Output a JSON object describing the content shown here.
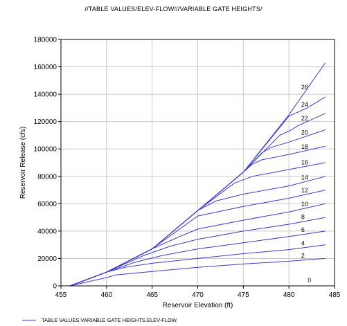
{
  "chart_data": {
    "type": "line",
    "title": "//TABLE VALUES/ELEV-FLOW///VARIABLE GATE HEIGHTS/",
    "xlabel": "Reservoir Elevation (ft)",
    "ylabel": "Reservoir Release (cfs)",
    "xlim": [
      455,
      485
    ],
    "ylim": [
      0,
      180000
    ],
    "xticks": [
      455,
      460,
      465,
      470,
      475,
      480,
      485
    ],
    "yticks": [
      0,
      20000,
      40000,
      60000,
      80000,
      100000,
      120000,
      140000,
      160000,
      180000
    ],
    "grid": true,
    "legend": {
      "position": "bottom-left",
      "label": "TABLE VALUES.VARIABLE GATE HEIGHTS.ELEV-FLOW."
    },
    "line_color": "#3a3acc",
    "series": [
      {
        "label": "0",
        "x": [
          456,
          485
        ],
        "y": [
          0,
          0
        ]
      },
      {
        "label": "2",
        "x": [
          456,
          460,
          461,
          465,
          470,
          475,
          480,
          484
        ],
        "y": [
          0,
          6000,
          8000,
          10500,
          13500,
          16000,
          18000,
          20000
        ]
      },
      {
        "label": "4",
        "x": [
          456,
          460,
          462,
          465,
          470,
          475,
          480,
          484
        ],
        "y": [
          0,
          10000,
          13500,
          16500,
          20000,
          23500,
          26500,
          30000
        ]
      },
      {
        "label": "6",
        "x": [
          456,
          460,
          463,
          466,
          470,
          475,
          480,
          484
        ],
        "y": [
          0,
          10000,
          17000,
          22000,
          27000,
          31500,
          36000,
          40000
        ]
      },
      {
        "label": "8",
        "x": [
          456,
          460,
          464,
          467,
          470,
          475,
          480,
          484
        ],
        "y": [
          0,
          10000,
          22000,
          29000,
          34000,
          40000,
          45000,
          50000
        ]
      },
      {
        "label": "10",
        "x": [
          456,
          460,
          465,
          468,
          470,
          475,
          480,
          484
        ],
        "y": [
          0,
          10000,
          27000,
          36000,
          41500,
          48000,
          54000,
          60000
        ]
      },
      {
        "label": "12",
        "x": [
          456,
          460,
          465,
          470,
          475,
          480,
          484
        ],
        "y": [
          0,
          10000,
          27000,
          51000,
          58000,
          64000,
          70000
        ]
      },
      {
        "label": "14",
        "x": [
          456,
          460,
          465,
          470,
          472,
          475,
          480,
          484
        ],
        "y": [
          0,
          10000,
          27000,
          55000,
          62000,
          67000,
          73000,
          80000
        ]
      },
      {
        "label": "16",
        "x": [
          456,
          460,
          465,
          470,
          474,
          476,
          480,
          484
        ],
        "y": [
          0,
          10000,
          27000,
          55000,
          75000,
          80000,
          85000,
          90000
        ]
      },
      {
        "label": "18",
        "x": [
          456,
          460,
          465,
          470,
          475,
          476,
          477,
          480,
          484
        ],
        "y": [
          0,
          10000,
          27000,
          55000,
          83000,
          89000,
          92000,
          96000,
          102000
        ]
      },
      {
        "label": "20",
        "x": [
          456,
          460,
          465,
          470,
          475,
          477,
          478,
          480,
          484
        ],
        "y": [
          0,
          10000,
          27000,
          55000,
          83000,
          97000,
          101000,
          105000,
          114000
        ]
      },
      {
        "label": "22",
        "x": [
          456,
          460,
          465,
          470,
          475,
          479,
          480,
          481,
          484
        ],
        "y": [
          0,
          10000,
          27000,
          55000,
          83000,
          110000,
          113000,
          117000,
          126000
        ]
      },
      {
        "label": "24",
        "x": [
          456,
          460,
          465,
          470,
          475,
          480,
          482,
          484
        ],
        "y": [
          0,
          10000,
          27000,
          55000,
          83000,
          124000,
          130000,
          138000
        ]
      },
      {
        "label": "26",
        "x": [
          456,
          460,
          465,
          470,
          475,
          480,
          484
        ],
        "y": [
          0,
          10000,
          27000,
          55000,
          83000,
          125000,
          163000
        ]
      }
    ]
  }
}
